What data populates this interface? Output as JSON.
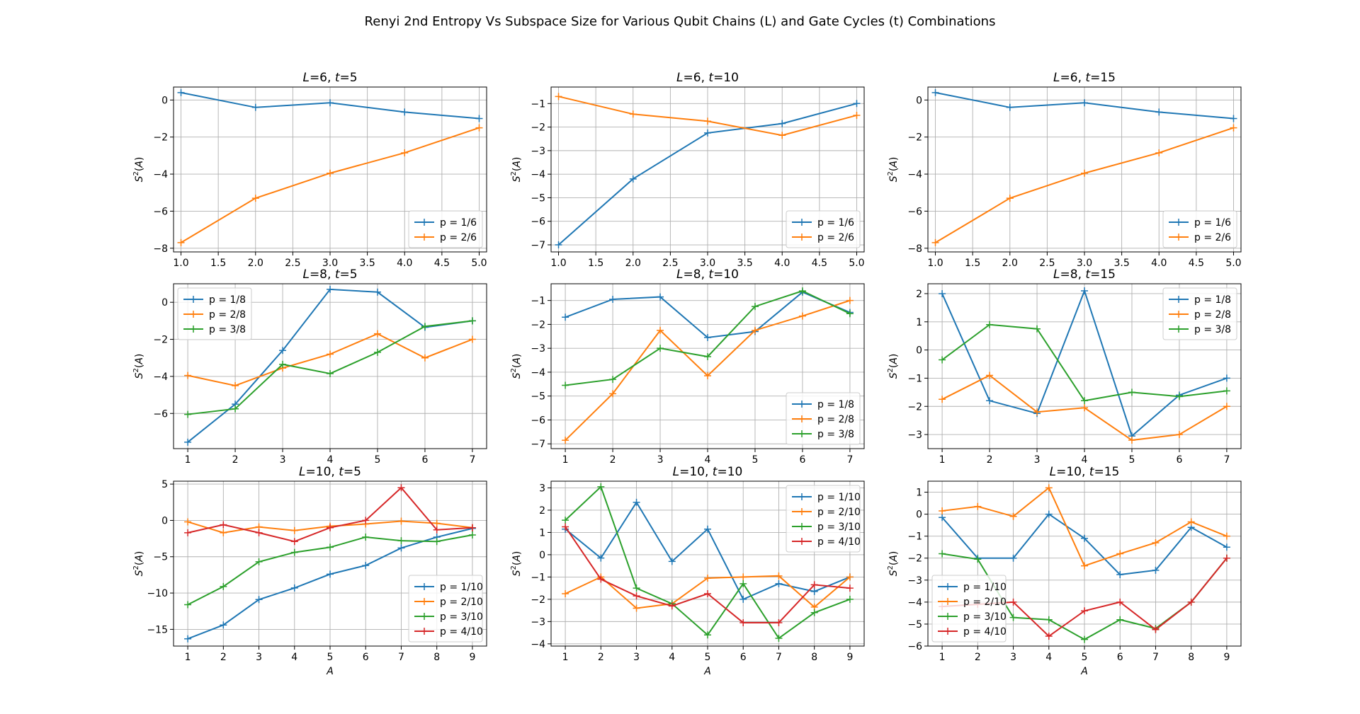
{
  "figure": {
    "title": "Renyi 2nd Entropy Vs Subspace Size for Various Qubit Chains (L) and Gate Cycles (t) Combinations",
    "colors": {
      "p1": "#1f77b4",
      "p2": "#ff7f0e",
      "p3": "#2ca02c",
      "p4": "#d62728"
    }
  },
  "chart_data": [
    {
      "type": "line",
      "title": "L=6, t=5",
      "L": "6",
      "t": "5",
      "xlabel": "",
      "ylabel": "S²(A)",
      "xlim": [
        0.9,
        5.1
      ],
      "ylim": [
        -8.2,
        0.7
      ],
      "xticks": [
        "1.0",
        "1.5",
        "2.0",
        "2.5",
        "3.0",
        "3.5",
        "4.0",
        "4.5",
        "5.0"
      ],
      "yticks": [
        "-8",
        "-6",
        "-4",
        "-2",
        "0"
      ],
      "legend_loc": "lower-right",
      "x": [
        1,
        2,
        3,
        4,
        5
      ],
      "series": [
        {
          "name": "p = 1/6",
          "values": [
            0.4,
            -0.4,
            -0.15,
            -0.65,
            -1.0
          ]
        },
        {
          "name": "p = 2/6",
          "values": [
            -7.7,
            -5.3,
            -3.95,
            -2.85,
            -1.5
          ]
        }
      ]
    },
    {
      "type": "line",
      "title": "L=6, t=10",
      "L": "6",
      "t": "10",
      "xlabel": "",
      "ylabel": "S²(A)",
      "xlim": [
        0.9,
        5.1
      ],
      "ylim": [
        -7.3,
        -0.3
      ],
      "xticks": [
        "1.0",
        "1.5",
        "2.0",
        "2.5",
        "3.0",
        "3.5",
        "4.0",
        "4.5",
        "5.0"
      ],
      "yticks": [
        "-7",
        "-6",
        "-5",
        "-4",
        "-3",
        "-2",
        "-1"
      ],
      "legend_loc": "lower-right",
      "x": [
        1,
        2,
        3,
        4,
        5
      ],
      "series": [
        {
          "name": "p = 1/6",
          "values": [
            -7.0,
            -4.2,
            -2.25,
            -1.85,
            -1.0
          ]
        },
        {
          "name": "p = 2/6",
          "values": [
            -0.7,
            -1.45,
            -1.75,
            -2.35,
            -1.5
          ]
        }
      ]
    },
    {
      "type": "line",
      "title": "L=6, t=15",
      "L": "6",
      "t": "15",
      "xlabel": "",
      "ylabel": "S²(A)",
      "xlim": [
        0.9,
        5.1
      ],
      "ylim": [
        -8.2,
        0.7
      ],
      "xticks": [
        "1.0",
        "1.5",
        "2.0",
        "2.5",
        "3.0",
        "3.5",
        "4.0",
        "4.5",
        "5.0"
      ],
      "yticks": [
        "-8",
        "-6",
        "-4",
        "-2",
        "0"
      ],
      "legend_loc": "lower-right",
      "x": [
        1,
        2,
        3,
        4,
        5
      ],
      "series": [
        {
          "name": "p = 1/6",
          "values": [
            0.4,
            -0.4,
            -0.15,
            -0.65,
            -1.0
          ]
        },
        {
          "name": "p = 2/6",
          "values": [
            -7.7,
            -5.3,
            -3.95,
            -2.85,
            -1.5
          ]
        }
      ]
    },
    {
      "type": "line",
      "title": "L=8, t=5",
      "L": "8",
      "t": "5",
      "xlabel": "",
      "ylabel": "S²(A)",
      "xlim": [
        0.7,
        7.3
      ],
      "ylim": [
        -7.9,
        1.0
      ],
      "xticks": [
        "1",
        "2",
        "3",
        "4",
        "5",
        "6",
        "7"
      ],
      "yticks": [
        "-6",
        "-4",
        "-2",
        "0"
      ],
      "legend_loc": "upper-left",
      "x": [
        1,
        2,
        3,
        4,
        5,
        6,
        7
      ],
      "series": [
        {
          "name": "p = 1/8",
          "values": [
            -7.55,
            -5.5,
            -2.6,
            0.7,
            0.55,
            -1.35,
            -1.0
          ]
        },
        {
          "name": "p = 2/8",
          "values": [
            -3.95,
            -4.5,
            -3.55,
            -2.8,
            -1.7,
            -3.0,
            -2.0
          ]
        },
        {
          "name": "p = 3/8",
          "values": [
            -6.05,
            -5.75,
            -3.35,
            -3.85,
            -2.7,
            -1.3,
            -1.0
          ]
        }
      ]
    },
    {
      "type": "line",
      "title": "L=8, t=10",
      "L": "8",
      "t": "10",
      "xlabel": "",
      "ylabel": "S²(A)",
      "xlim": [
        0.7,
        7.3
      ],
      "ylim": [
        -7.2,
        -0.3
      ],
      "xticks": [
        "1",
        "2",
        "3",
        "4",
        "5",
        "6",
        "7"
      ],
      "yticks": [
        "-7",
        "-6",
        "-5",
        "-4",
        "-3",
        "-2",
        "-1"
      ],
      "legend_loc": "lower-right",
      "x": [
        1,
        2,
        3,
        4,
        5,
        6,
        7
      ],
      "series": [
        {
          "name": "p = 1/8",
          "values": [
            -1.7,
            -0.95,
            -0.85,
            -2.55,
            -2.3,
            -0.65,
            -1.5
          ]
        },
        {
          "name": "p = 2/8",
          "values": [
            -6.85,
            -4.9,
            -2.25,
            -4.15,
            -2.25,
            -1.65,
            -1.0
          ]
        },
        {
          "name": "p = 3/8",
          "values": [
            -4.55,
            -4.3,
            -3.0,
            -3.35,
            -1.25,
            -0.6,
            -1.55
          ]
        }
      ]
    },
    {
      "type": "line",
      "title": "L=8, t=15",
      "L": "8",
      "t": "15",
      "xlabel": "",
      "ylabel": "S²(A)",
      "xlim": [
        0.7,
        7.3
      ],
      "ylim": [
        -3.5,
        2.35
      ],
      "xticks": [
        "1",
        "2",
        "3",
        "4",
        "5",
        "6",
        "7"
      ],
      "yticks": [
        "-3",
        "-2",
        "-1",
        "0",
        "1",
        "2"
      ],
      "legend_loc": "upper-right",
      "x": [
        1,
        2,
        3,
        4,
        5,
        6,
        7
      ],
      "series": [
        {
          "name": "p = 1/8",
          "values": [
            2.0,
            -1.8,
            -2.25,
            2.1,
            -3.05,
            -1.6,
            -1.0
          ]
        },
        {
          "name": "p = 2/8",
          "values": [
            -1.75,
            -0.9,
            -2.2,
            -2.05,
            -3.2,
            -3.0,
            -2.0
          ]
        },
        {
          "name": "p = 3/8",
          "values": [
            -0.35,
            0.9,
            0.75,
            -1.8,
            -1.5,
            -1.65,
            -1.45
          ]
        }
      ]
    },
    {
      "type": "line",
      "title": "L=10, t=5",
      "L": "10",
      "t": "5",
      "xlabel": "A",
      "ylabel": "S²(A)",
      "xlim": [
        0.6,
        9.4
      ],
      "ylim": [
        -17.3,
        5.4
      ],
      "xticks": [
        "1",
        "2",
        "3",
        "4",
        "5",
        "6",
        "7",
        "8",
        "9"
      ],
      "yticks": [
        "-15",
        "-10",
        "-5",
        "0",
        "5"
      ],
      "legend_loc": "lower-right",
      "x": [
        1,
        2,
        3,
        4,
        5,
        6,
        7,
        8,
        9
      ],
      "series": [
        {
          "name": "p = 1/10",
          "values": [
            -16.3,
            -14.4,
            -10.9,
            -9.3,
            -7.4,
            -6.2,
            -3.8,
            -2.3,
            -1.1
          ]
        },
        {
          "name": "p = 2/10",
          "values": [
            -0.2,
            -1.7,
            -0.9,
            -1.4,
            -0.8,
            -0.5,
            -0.1,
            -0.4,
            -1.0
          ]
        },
        {
          "name": "p = 3/10",
          "values": [
            -11.6,
            -9.1,
            -5.7,
            -4.4,
            -3.7,
            -2.3,
            -2.8,
            -2.9,
            -2.0
          ]
        },
        {
          "name": "p = 4/10",
          "values": [
            -1.7,
            -0.6,
            -1.7,
            -2.9,
            -1.0,
            0.0,
            4.5,
            -1.3,
            -1.0
          ]
        }
      ]
    },
    {
      "type": "line",
      "title": "L=10, t=10",
      "L": "10",
      "t": "10",
      "xlabel": "A",
      "ylabel": "S²(A)",
      "xlim": [
        0.6,
        9.4
      ],
      "ylim": [
        -4.1,
        3.3
      ],
      "xticks": [
        "1",
        "2",
        "3",
        "4",
        "5",
        "6",
        "7",
        "8",
        "9"
      ],
      "yticks": [
        "-4",
        "-3",
        "-2",
        "-1",
        "0",
        "1",
        "2",
        "3"
      ],
      "legend_loc": "upper-right",
      "x": [
        1,
        2,
        3,
        4,
        5,
        6,
        7,
        8,
        9
      ],
      "series": [
        {
          "name": "p = 1/10",
          "values": [
            1.15,
            -0.15,
            2.35,
            -0.3,
            1.15,
            -2.0,
            -1.3,
            -1.65,
            -1.0
          ]
        },
        {
          "name": "p = 2/10",
          "values": [
            -1.75,
            -1.0,
            -2.4,
            -2.2,
            -1.05,
            -1.0,
            -0.95,
            -2.35,
            -1.0
          ]
        },
        {
          "name": "p = 3/10",
          "values": [
            1.55,
            3.05,
            -1.5,
            -2.2,
            -3.6,
            -1.3,
            -3.75,
            -2.6,
            -2.0
          ]
        },
        {
          "name": "p = 4/10",
          "values": [
            1.25,
            -1.1,
            -1.85,
            -2.3,
            -1.75,
            -3.05,
            -3.05,
            -1.35,
            -1.5
          ]
        }
      ]
    },
    {
      "type": "line",
      "title": "L=10, t=15",
      "L": "10",
      "t": "15",
      "xlabel": "A",
      "ylabel": "S²(A)",
      "xlim": [
        0.6,
        9.4
      ],
      "ylim": [
        -6.0,
        1.5
      ],
      "xticks": [
        "1",
        "2",
        "3",
        "4",
        "5",
        "6",
        "7",
        "8",
        "9"
      ],
      "yticks": [
        "-6",
        "-5",
        "-4",
        "-3",
        "-2",
        "-1",
        "0",
        "1"
      ],
      "legend_loc": "lower-left",
      "x": [
        1,
        2,
        3,
        4,
        5,
        6,
        7,
        8,
        9
      ],
      "series": [
        {
          "name": "p = 1/10",
          "values": [
            -0.15,
            -2.0,
            -2.0,
            0.0,
            -1.1,
            -2.75,
            -2.55,
            -0.6,
            -1.5
          ]
        },
        {
          "name": "p = 2/10",
          "values": [
            0.15,
            0.35,
            -0.1,
            1.2,
            -2.35,
            -1.8,
            -1.3,
            -0.35,
            -1.0
          ]
        },
        {
          "name": "p = 3/10",
          "values": [
            -1.8,
            -2.05,
            -4.7,
            -4.8,
            -5.7,
            -4.8,
            -5.2,
            -4.0,
            -2.0
          ]
        },
        {
          "name": "p = 4/10",
          "values": [
            -4.2,
            -4.1,
            -4.0,
            -5.55,
            -4.4,
            -4.0,
            -5.25,
            -4.0,
            -2.0
          ]
        }
      ]
    }
  ]
}
